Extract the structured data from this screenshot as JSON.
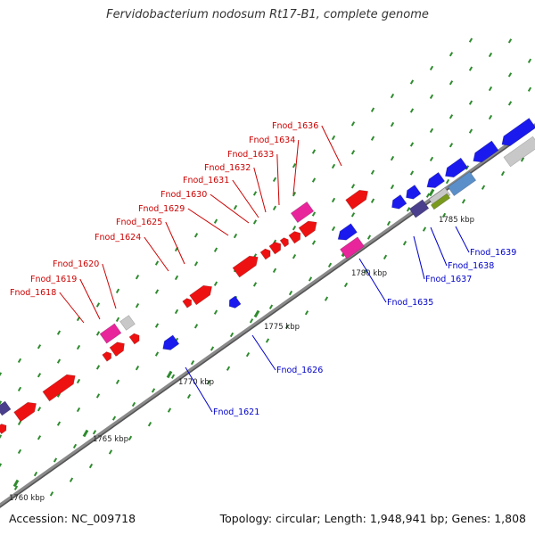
{
  "title": "Fervidobacterium nodosum Rt17-B1, complete genome",
  "footer": {
    "accession": "Accession: NC_009718",
    "summary": "Topology: circular; Length: 1,948,941 bp; Genes: 1,808"
  },
  "colors": {
    "backbone": "#8a8a8a",
    "tick": "#2e8b2e",
    "label_red": "#cc0000",
    "label_blue": "#0000cc",
    "gene_red": "#ee1111",
    "gene_magenta": "#e8259a",
    "gene_blue": "#1a1aee",
    "gene_navy": "#4a3f8c",
    "gene_gray": "#c8c8c8",
    "gene_steel": "#5b8fc9",
    "gene_olive": "#7a9a1e"
  },
  "scale_labels": [
    "1760 kbp",
    "1765 kbp",
    "1770 kbp",
    "1775 kbp",
    "1780 kbp",
    "1785 kbp"
  ],
  "forward_labels": [
    "Fnod_1618",
    "Fnod_1619",
    "Fnod_1620",
    "Fnod_1624",
    "Fnod_1625",
    "Fnod_1629",
    "Fnod_1630",
    "Fnod_1631",
    "Fnod_1632",
    "Fnod_1633",
    "Fnod_1634",
    "Fnod_1636"
  ],
  "reverse_labels": [
    "Fnod_1621",
    "Fnod_1626",
    "Fnod_1635",
    "Fnod_1637",
    "Fnod_1638",
    "Fnod_1639"
  ]
}
